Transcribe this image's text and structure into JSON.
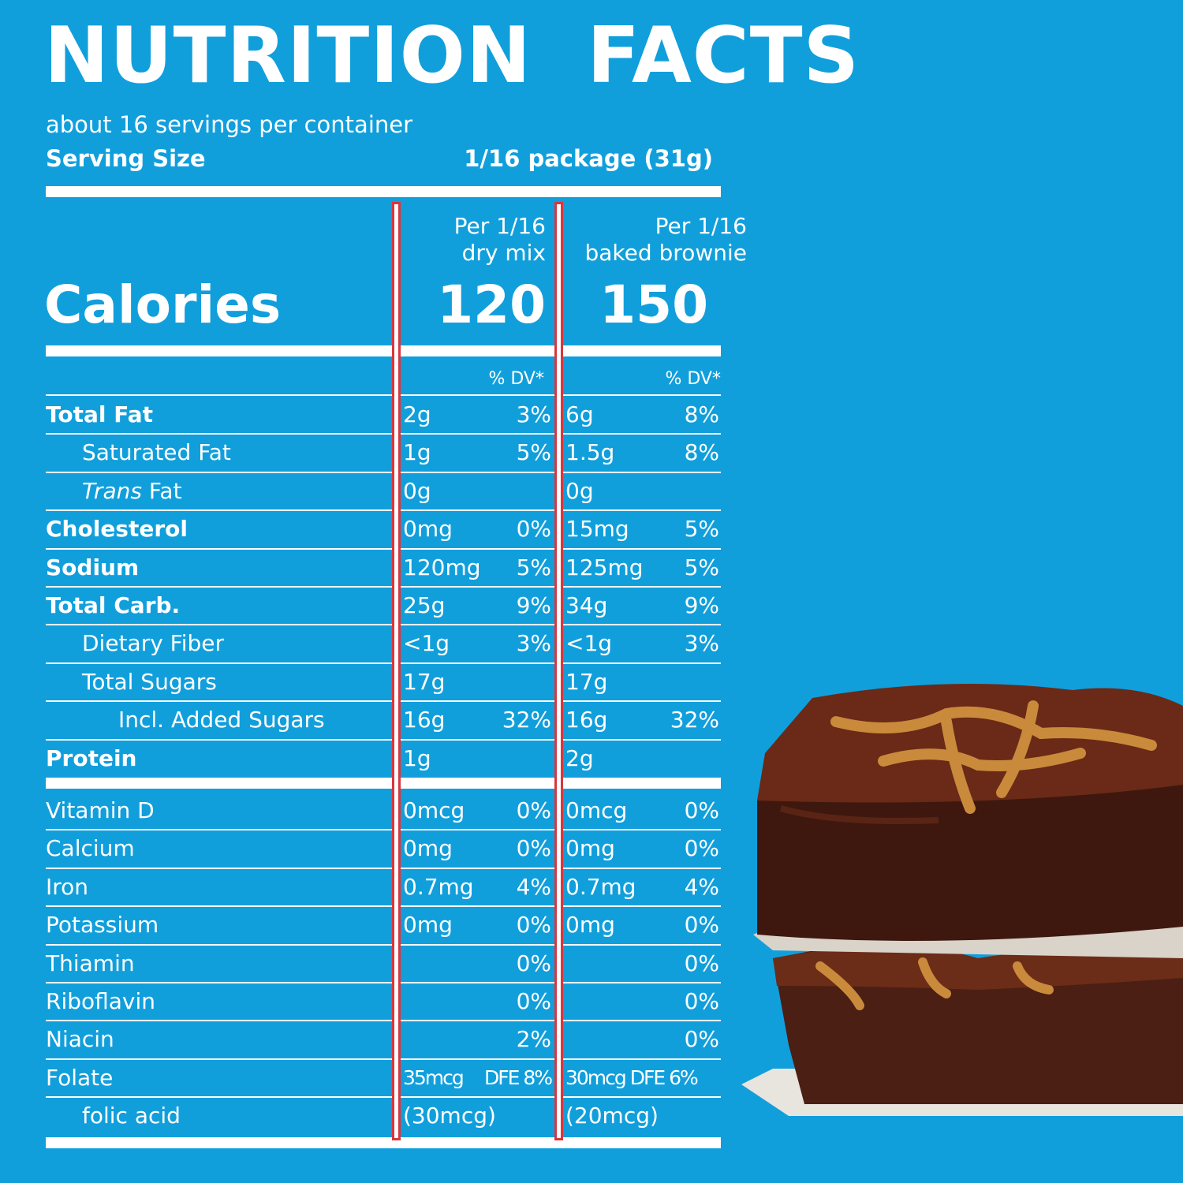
{
  "header": {
    "title": "NUTRITION  FACTS",
    "servings": "about 16 servings per container",
    "serving_size_label": "Serving Size",
    "serving_size_value": "1/16 package (31g)"
  },
  "columns": {
    "col1_line1": "Per 1/16",
    "col1_line2": "dry mix",
    "col2_line1": "Per 1/16",
    "col2_line2": "baked brownie"
  },
  "calories": {
    "label": "Calories",
    "dry_mix": "120",
    "baked": "150"
  },
  "dv_header": "% DV*",
  "nutrients": [
    {
      "name": "Total Fat",
      "bold": true,
      "indent": 0,
      "a1": "2g",
      "p1": "3%",
      "a2": "6g",
      "p2": "8%"
    },
    {
      "name": "Saturated Fat",
      "bold": false,
      "indent": 1,
      "a1": "1g",
      "p1": "5%",
      "a2": "1.5g",
      "p2": "8%"
    },
    {
      "name_italic": "Trans",
      "name": " Fat",
      "bold": false,
      "indent": 1,
      "a1": "0g",
      "p1": "",
      "a2": "0g",
      "p2": ""
    },
    {
      "name": "Cholesterol",
      "bold": true,
      "indent": 0,
      "a1": "0mg",
      "p1": "0%",
      "a2": "15mg",
      "p2": "5%"
    },
    {
      "name": "Sodium",
      "bold": true,
      "indent": 0,
      "a1": "120mg",
      "p1": "5%",
      "a2": "125mg",
      "p2": "5%"
    },
    {
      "name": "Total Carb.",
      "bold": true,
      "indent": 0,
      "a1": "25g",
      "p1": "9%",
      "a2": "34g",
      "p2": "9%"
    },
    {
      "name": "Dietary Fiber",
      "bold": false,
      "indent": 1,
      "a1": "<1g",
      "p1": "3%",
      "a2": "<1g",
      "p2": "3%"
    },
    {
      "name": "Total Sugars",
      "bold": false,
      "indent": 1,
      "a1": "17g",
      "p1": "",
      "a2": "17g",
      "p2": ""
    },
    {
      "name": "Incl. Added Sugars",
      "bold": false,
      "indent": 2,
      "a1": "16g",
      "p1": "32%",
      "a2": "16g",
      "p2": "32%"
    },
    {
      "name": "Protein",
      "bold": true,
      "indent": 0,
      "a1": "1g",
      "p1": "",
      "a2": "2g",
      "p2": ""
    }
  ],
  "vitamins": [
    {
      "name": "Vitamin D",
      "indent": 0,
      "a1": "0mcg",
      "p1": "0%",
      "a2": "0mcg",
      "p2": "0%"
    },
    {
      "name": "Calcium",
      "indent": 0,
      "a1": "0mg",
      "p1": "0%",
      "a2": "0mg",
      "p2": "0%"
    },
    {
      "name": "Iron",
      "indent": 0,
      "a1": "0.7mg",
      "p1": "4%",
      "a2": "0.7mg",
      "p2": "4%"
    },
    {
      "name": "Potassium",
      "indent": 0,
      "a1": "0mg",
      "p1": "0%",
      "a2": "0mg",
      "p2": "0%"
    },
    {
      "name": "Thiamin",
      "indent": 0,
      "a1": "",
      "p1": "0%",
      "a2": "",
      "p2": "0%"
    },
    {
      "name": "Riboflavin",
      "indent": 0,
      "a1": "",
      "p1": "0%",
      "a2": "",
      "p2": "0%"
    },
    {
      "name": "Niacin",
      "indent": 0,
      "a1": "",
      "p1": "2%",
      "a2": "",
      "p2": "0%"
    },
    {
      "name": "Folate",
      "indent": 0,
      "a1": "35mcg",
      "p1": "DFE 8%",
      "a2": "30mcg DFE 6%",
      "p2": "",
      "narrow": true
    },
    {
      "name": "folic acid",
      "indent": 1,
      "a1": "(30mcg)",
      "p1": "",
      "a2": "(20mcg)",
      "p2": "",
      "norule": true
    }
  ],
  "colors": {
    "background": "#119fdc",
    "text": "#ffffff",
    "column_outline": "#d9363e"
  }
}
